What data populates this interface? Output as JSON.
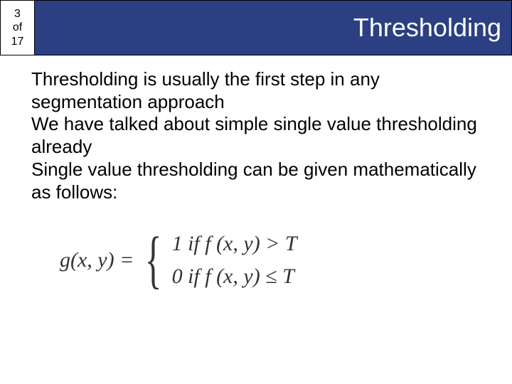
{
  "header": {
    "page_current": "3",
    "page_word": "of",
    "page_total": "17",
    "title": "Thresholding",
    "bg_color": "#2c3f83",
    "title_color": "#ffffff"
  },
  "body": {
    "p1": "Thresholding is usually the first step in any segmentation approach",
    "p2": "We have talked about simple single value thresholding already",
    "p3": "Single value thresholding can be given mathematically as follows:"
  },
  "formula": {
    "lhs": "g(x, y) = ",
    "case1": "1 if   f (x, y) > T",
    "case2": "0 if   f (x, y) ≤ T"
  }
}
